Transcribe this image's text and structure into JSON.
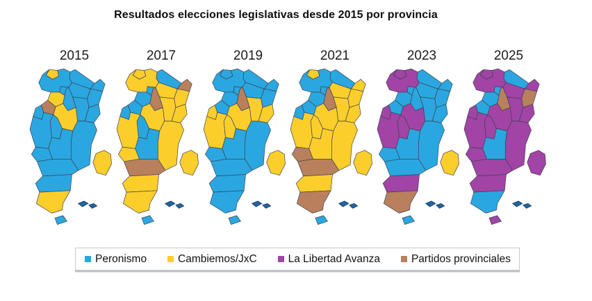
{
  "title": "Resultados elecciones legislativas desde 2015 por provincia",
  "years": [
    "2015",
    "2017",
    "2019",
    "2021",
    "2023",
    "2025"
  ],
  "legend_items": [
    {
      "party": "peronismo",
      "label": "Peronismo"
    },
    {
      "party": "cambiemos",
      "label": "Cambiemos/JxC"
    },
    {
      "party": "lla",
      "label": "La Libertad Avanza"
    },
    {
      "party": "provinciales",
      "label": "Partidos provinciales"
    }
  ],
  "party_colors": {
    "peronismo": "#2aa7e0",
    "cambiemos": "#fcce2c",
    "lla": "#a144a6",
    "provinciales": "#b9805d"
  },
  "map_colors": {
    "malvinas": "#2265a0",
    "border": "#3a4150"
  },
  "results": {
    "2015": {
      "jujuy": "cambiemos",
      "salta": "peronismo",
      "formosa": "peronismo",
      "chaco": "peronismo",
      "misiones": "peronismo",
      "corrientes": "peronismo",
      "tucuman": "peronismo",
      "santiago_del_estero": "peronismo",
      "catamarca": "cambiemos",
      "la_rioja": "provinciales",
      "santa_fe": "peronismo",
      "entre_rios": "peronismo",
      "cordoba": "cambiemos",
      "san_juan": "peronismo",
      "san_luis": "peronismo",
      "mendoza": "peronismo",
      "la_pampa": "peronismo",
      "buenos_aires": "peronismo",
      "caba": "cambiemos",
      "neuquen": "peronismo",
      "rio_negro": "peronismo",
      "chubut": "peronismo",
      "santa_cruz": "cambiemos",
      "tierra_del_fuego": "peronismo"
    },
    "2017": {
      "jujuy": "cambiemos",
      "salta": "cambiemos",
      "formosa": "peronismo",
      "chaco": "cambiemos",
      "misiones": "provinciales",
      "corrientes": "cambiemos",
      "tucuman": "peronismo",
      "santiago_del_estero": "provinciales",
      "catamarca": "peronismo",
      "la_rioja": "peronismo",
      "santa_fe": "cambiemos",
      "entre_rios": "cambiemos",
      "cordoba": "cambiemos",
      "san_juan": "peronismo",
      "san_luis": "peronismo",
      "mendoza": "cambiemos",
      "la_pampa": "peronismo",
      "buenos_aires": "cambiemos",
      "caba": "cambiemos",
      "neuquen": "cambiemos",
      "rio_negro": "provinciales",
      "chubut": "cambiemos",
      "santa_cruz": "cambiemos",
      "tierra_del_fuego": "peronismo"
    },
    "2019": {
      "jujuy": "peronismo",
      "salta": "peronismo",
      "formosa": "peronismo",
      "chaco": "peronismo",
      "misiones": "peronismo",
      "corrientes": "peronismo",
      "tucuman": "peronismo",
      "santiago_del_estero": "provinciales",
      "catamarca": "peronismo",
      "la_rioja": "peronismo",
      "santa_fe": "cambiemos",
      "entre_rios": "cambiemos",
      "cordoba": "cambiemos",
      "san_juan": "cambiemos",
      "san_luis": "cambiemos",
      "mendoza": "cambiemos",
      "la_pampa": "peronismo",
      "buenos_aires": "peronismo",
      "caba": "cambiemos",
      "neuquen": "peronismo",
      "rio_negro": "peronismo",
      "chubut": "peronismo",
      "santa_cruz": "peronismo",
      "tierra_del_fuego": "peronismo"
    },
    "2021": {
      "jujuy": "cambiemos",
      "salta": "peronismo",
      "formosa": "peronismo",
      "chaco": "cambiemos",
      "misiones": "cambiemos",
      "corrientes": "cambiemos",
      "tucuman": "peronismo",
      "santiago_del_estero": "provinciales",
      "catamarca": "peronismo",
      "la_rioja": "peronismo",
      "santa_fe": "cambiemos",
      "entre_rios": "cambiemos",
      "cordoba": "cambiemos",
      "san_juan": "peronismo",
      "san_luis": "cambiemos",
      "mendoza": "cambiemos",
      "la_pampa": "cambiemos",
      "buenos_aires": "cambiemos",
      "caba": "cambiemos",
      "neuquen": "provinciales",
      "rio_negro": "provinciales",
      "chubut": "cambiemos",
      "santa_cruz": "provinciales",
      "tierra_del_fuego": "peronismo"
    },
    "2023": {
      "jujuy": "lla",
      "salta": "lla",
      "formosa": "peronismo",
      "chaco": "peronismo",
      "misiones": "peronismo",
      "corrientes": "peronismo",
      "tucuman": "peronismo",
      "santiago_del_estero": "peronismo",
      "catamarca": "peronismo",
      "la_rioja": "peronismo",
      "santa_fe": "peronismo",
      "entre_rios": "peronismo",
      "cordoba": "lla",
      "san_juan": "lla",
      "san_luis": "lla",
      "mendoza": "lla",
      "la_pampa": "peronismo",
      "buenos_aires": "peronismo",
      "caba": "cambiemos",
      "neuquen": "peronismo",
      "rio_negro": "peronismo",
      "chubut": "lla",
      "santa_cruz": "provinciales",
      "tierra_del_fuego": "peronismo"
    },
    "2025": {
      "jujuy": "lla",
      "salta": "lla",
      "formosa": "peronismo",
      "chaco": "lla",
      "misiones": "lla",
      "corrientes": "provinciales",
      "tucuman": "peronismo",
      "santiago_del_estero": "provinciales",
      "catamarca": "peronismo",
      "la_rioja": "peronismo",
      "santa_fe": "lla",
      "entre_rios": "lla",
      "cordoba": "lla",
      "san_juan": "lla",
      "san_luis": "lla",
      "mendoza": "lla",
      "la_pampa": "peronismo",
      "buenos_aires": "lla",
      "caba": "lla",
      "neuquen": "lla",
      "rio_negro": "lla",
      "chubut": "lla",
      "santa_cruz": "peronismo",
      "tierra_del_fuego": "lla"
    }
  }
}
